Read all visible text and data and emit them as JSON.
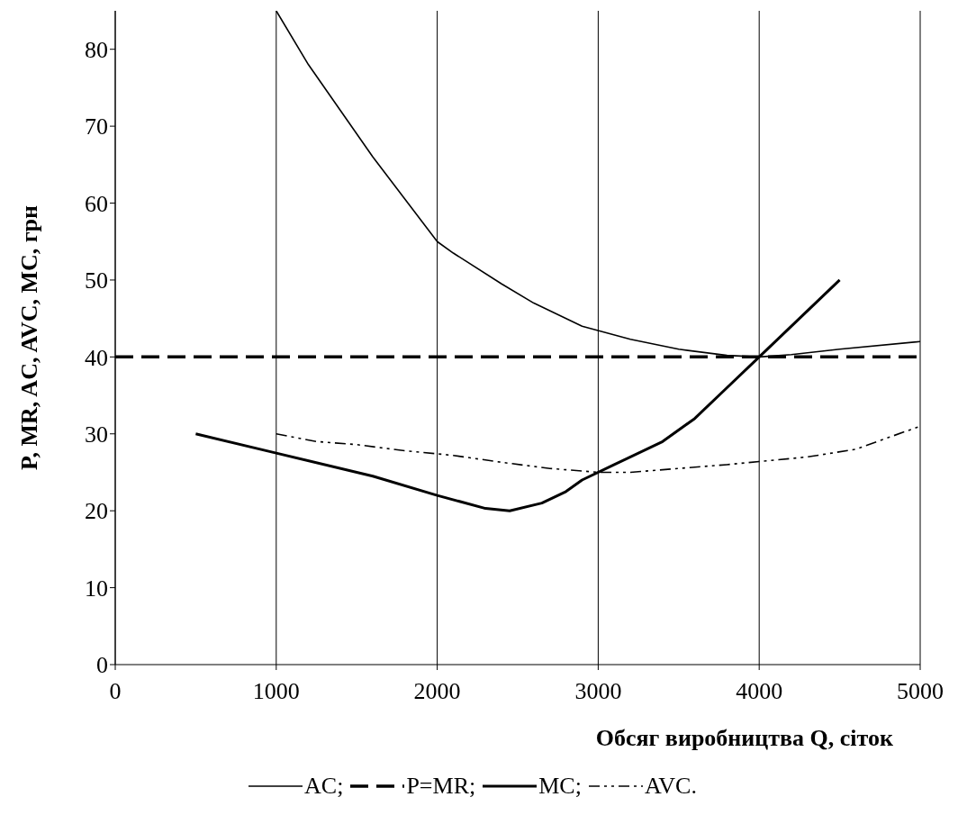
{
  "chart_data": {
    "type": "line",
    "xlabel": "Обсяг виробництва Q, сіток",
    "ylabel": "P, MR, AC, AVC, MC, грн",
    "xlim": [
      0,
      5000
    ],
    "xticks": [
      0,
      1000,
      2000,
      3000,
      4000,
      5000
    ],
    "ylim": [
      0,
      85
    ],
    "yticks": [
      0,
      10,
      20,
      30,
      40,
      50,
      60,
      70,
      80
    ],
    "grid": "x",
    "legend": "bottom",
    "marker": "none",
    "series": [
      {
        "name": "AC;",
        "color": "#000000",
        "line_style": "solid",
        "x": [
          1000,
          1200,
          1400,
          1600,
          1800,
          2000,
          2100,
          2400,
          2600,
          2900,
          3200,
          3500,
          3800,
          4000,
          4200,
          4500,
          5000
        ],
        "values": [
          85,
          78,
          72,
          66,
          60.5,
          55,
          53.5,
          49.5,
          47,
          44,
          42.3,
          41,
          40.2,
          40,
          40.3,
          41,
          42
        ]
      },
      {
        "name": "P=MR;",
        "color": "#000000",
        "line_style": "dashed",
        "x": [
          0,
          5000
        ],
        "values": [
          40,
          40
        ]
      },
      {
        "name": "MC;",
        "color": "#000000",
        "line_style": "solid",
        "x": [
          500,
          1000,
          1600,
          2000,
          2300,
          2450,
          2650,
          2800,
          2900,
          3100,
          3400,
          3600,
          3800,
          4000,
          4500
        ],
        "values": [
          30,
          27.5,
          24.5,
          22,
          20.3,
          20,
          21,
          22.5,
          24,
          26,
          29,
          32,
          36,
          40,
          50
        ]
      },
      {
        "name": "AVC.",
        "color": "#000000",
        "line_style": "dashdot",
        "x": [
          1000,
          1250,
          1500,
          1800,
          2100,
          2400,
          2700,
          3000,
          3200,
          3500,
          3800,
          4000,
          4300,
          4600,
          5000
        ],
        "values": [
          30,
          29,
          28.6,
          27.8,
          27.2,
          26.3,
          25.5,
          25,
          25,
          25.5,
          26,
          26.4,
          27,
          28,
          31
        ]
      }
    ]
  }
}
